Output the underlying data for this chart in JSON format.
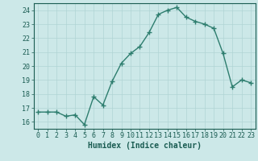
{
  "x": [
    0,
    1,
    2,
    3,
    4,
    5,
    6,
    7,
    8,
    9,
    10,
    11,
    12,
    13,
    14,
    15,
    16,
    17,
    18,
    19,
    20,
    21,
    22,
    23
  ],
  "y": [
    16.7,
    16.7,
    16.7,
    16.4,
    16.5,
    15.8,
    17.8,
    17.2,
    18.9,
    20.2,
    20.9,
    21.4,
    22.4,
    23.7,
    24.0,
    24.2,
    23.5,
    23.2,
    23.0,
    22.7,
    20.9,
    18.5,
    19.0,
    18.8
  ],
  "line_color": "#2d7d6e",
  "bg_color": "#cce8e8",
  "grid_color": "#b0d4d4",
  "xlabel": "Humidex (Indice chaleur)",
  "xlim": [
    -0.5,
    23.5
  ],
  "ylim": [
    15.5,
    24.5
  ],
  "yticks": [
    16,
    17,
    18,
    19,
    20,
    21,
    22,
    23,
    24
  ],
  "xticks": [
    0,
    1,
    2,
    3,
    4,
    5,
    6,
    7,
    8,
    9,
    10,
    11,
    12,
    13,
    14,
    15,
    16,
    17,
    18,
    19,
    20,
    21,
    22,
    23
  ],
  "marker": "+",
  "marker_size": 4,
  "line_width": 1.0,
  "xlabel_fontsize": 7,
  "tick_fontsize": 6,
  "tick_color": "#1a5c52",
  "axis_color": "#1a5c52"
}
